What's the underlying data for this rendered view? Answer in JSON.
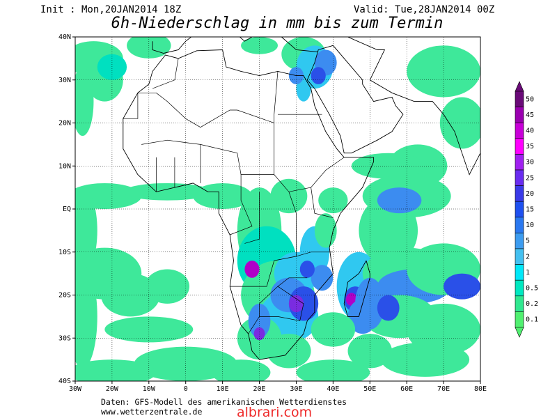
{
  "header": {
    "init": "Init : Mon,20JAN2014 18Z",
    "valid": "Valid: Tue,28JAN2014 00Z",
    "title": "6h-Niederschlag in mm bis zum Termin"
  },
  "map": {
    "lat_labels": [
      "40N",
      "30N",
      "20N",
      "10N",
      "EQ",
      "10S",
      "20S",
      "30S",
      "40S"
    ],
    "lon_labels": [
      "30W",
      "20W",
      "10W",
      "0",
      "10E",
      "20E",
      "30E",
      "40E",
      "50E",
      "60E",
      "70E",
      "80E"
    ]
  },
  "legend": {
    "levels": [
      50,
      45,
      40,
      35,
      30,
      25,
      20,
      15,
      10,
      5,
      2,
      1,
      0.5,
      0.2,
      0.1
    ],
    "colors": [
      "#6a0a78",
      "#9a00b0",
      "#c800d8",
      "#ff00ff",
      "#a020f0",
      "#6a2cf0",
      "#3a3ae8",
      "#1e50f0",
      "#2a78f0",
      "#3c9cf0",
      "#44c0f0",
      "#00e8f8",
      "#00e8c0",
      "#30e890",
      "#50f070"
    ]
  },
  "footer": {
    "line1": "Daten: GFS-Modell des amerikanischen Wetterdienstes",
    "line2": "www.wetterzentrale.de",
    "watermark": "albrari.com"
  }
}
